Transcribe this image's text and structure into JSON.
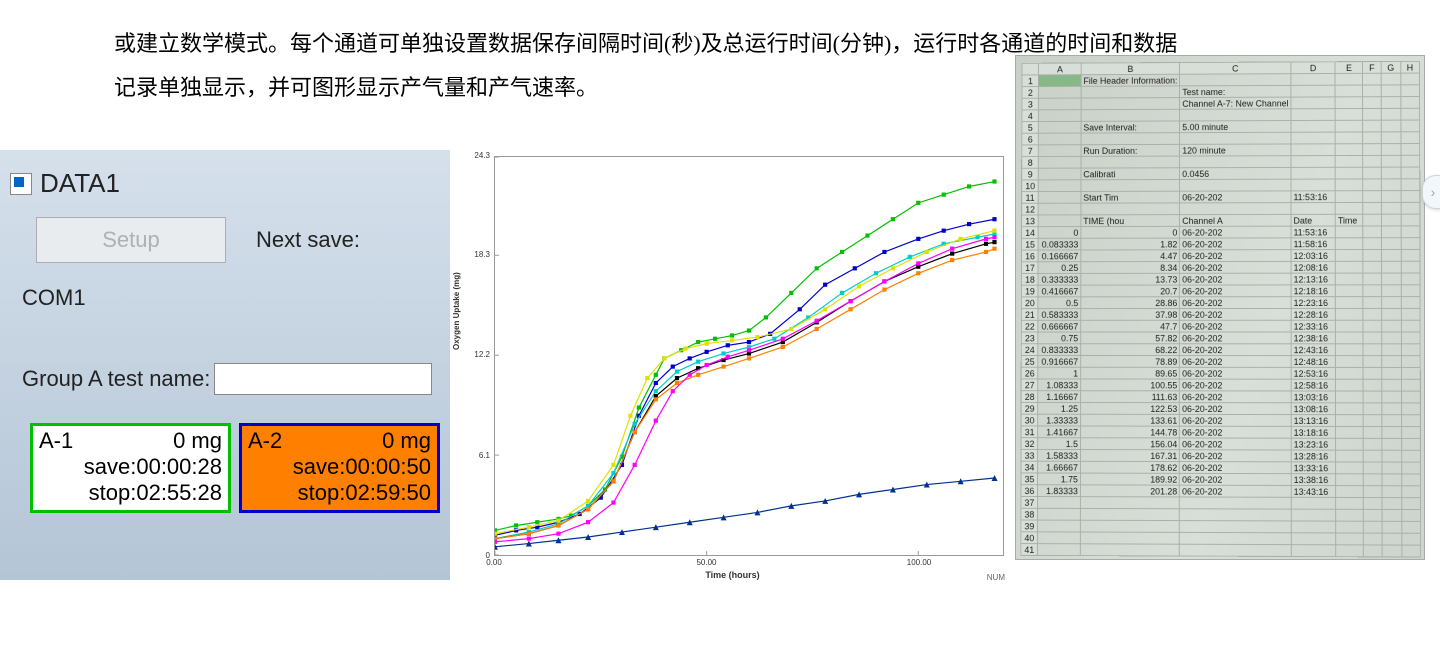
{
  "intro_text": "或建立数学模式。每个通道可单独设置数据保存间隔时间(秒)及总运行时间(分钟)，运行时各通道的时间和数据记录单独显示，并可图形显示产气量和产气速率。",
  "app": {
    "title": "DATA1",
    "setup_label": "Setup",
    "next_save_label": "Next save:",
    "com_label": "COM1",
    "group_label": "Group A test name:",
    "group_value": "",
    "channels": [
      {
        "id": "A-1",
        "value": "0 mg",
        "save": "save:00:00:28",
        "stop": "stop:02:55:28",
        "border_color": "#00c000",
        "bg_color": "#ffffff"
      },
      {
        "id": "A-2",
        "value": "0 mg",
        "save": "save:00:00:50",
        "stop": "stop:02:59:50",
        "border_color": "#0000cc",
        "bg_color": "#ff8000"
      }
    ]
  },
  "chart": {
    "type": "line",
    "x_label": "Time (hours)",
    "y_label": "Oxygen Uptake (mg)",
    "x_ticks": [
      0.0,
      50.0,
      100.0
    ],
    "y_ticks": [
      0,
      6.1,
      12.2,
      18.3,
      24.3
    ],
    "xlim": [
      0,
      120
    ],
    "ylim": [
      0,
      24.3
    ],
    "background_color": "#ffffff",
    "grid": false,
    "marker_size": 3,
    "line_width": 1.2,
    "series": [
      {
        "color": "#00c000",
        "marker": "square",
        "data": [
          [
            0,
            1.5
          ],
          [
            5,
            1.8
          ],
          [
            10,
            2.0
          ],
          [
            15,
            2.2
          ],
          [
            18,
            2.4
          ],
          [
            22,
            3.0
          ],
          [
            26,
            4.0
          ],
          [
            30,
            6.0
          ],
          [
            34,
            9.0
          ],
          [
            38,
            11.0
          ],
          [
            40,
            12.0
          ],
          [
            44,
            12.5
          ],
          [
            48,
            13.0
          ],
          [
            52,
            13.2
          ],
          [
            56,
            13.4
          ],
          [
            60,
            13.7
          ],
          [
            64,
            14.5
          ],
          [
            70,
            16.0
          ],
          [
            76,
            17.5
          ],
          [
            82,
            18.5
          ],
          [
            88,
            19.5
          ],
          [
            94,
            20.5
          ],
          [
            100,
            21.5
          ],
          [
            106,
            22.0
          ],
          [
            112,
            22.5
          ],
          [
            118,
            22.8
          ]
        ]
      },
      {
        "color": "#0000cc",
        "marker": "square",
        "data": [
          [
            0,
            1.2
          ],
          [
            5,
            1.5
          ],
          [
            10,
            1.7
          ],
          [
            15,
            2.0
          ],
          [
            20,
            2.5
          ],
          [
            25,
            3.5
          ],
          [
            30,
            5.5
          ],
          [
            34,
            8.5
          ],
          [
            38,
            10.5
          ],
          [
            42,
            11.5
          ],
          [
            46,
            12.0
          ],
          [
            50,
            12.4
          ],
          [
            55,
            12.8
          ],
          [
            60,
            13.0
          ],
          [
            65,
            13.5
          ],
          [
            72,
            15.0
          ],
          [
            78,
            16.5
          ],
          [
            85,
            17.5
          ],
          [
            92,
            18.5
          ],
          [
            100,
            19.3
          ],
          [
            106,
            19.8
          ],
          [
            112,
            20.2
          ],
          [
            118,
            20.5
          ]
        ]
      },
      {
        "color": "#00cccc",
        "marker": "square",
        "data": [
          [
            0,
            1.0
          ],
          [
            8,
            1.4
          ],
          [
            15,
            1.9
          ],
          [
            22,
            3.0
          ],
          [
            28,
            5.0
          ],
          [
            33,
            8.0
          ],
          [
            38,
            10.0
          ],
          [
            43,
            11.2
          ],
          [
            48,
            11.8
          ],
          [
            54,
            12.3
          ],
          [
            60,
            12.7
          ],
          [
            66,
            13.2
          ],
          [
            74,
            14.5
          ],
          [
            82,
            16.0
          ],
          [
            90,
            17.2
          ],
          [
            98,
            18.2
          ],
          [
            106,
            19.0
          ],
          [
            114,
            19.4
          ],
          [
            118,
            19.6
          ]
        ]
      },
      {
        "color": "#000000",
        "marker": "square",
        "data": [
          [
            0,
            1.0
          ],
          [
            8,
            1.3
          ],
          [
            15,
            1.8
          ],
          [
            22,
            2.8
          ],
          [
            28,
            4.5
          ],
          [
            33,
            7.5
          ],
          [
            38,
            9.7
          ],
          [
            43,
            10.8
          ],
          [
            48,
            11.4
          ],
          [
            54,
            11.9
          ],
          [
            60,
            12.3
          ],
          [
            68,
            13.0
          ],
          [
            76,
            14.2
          ],
          [
            84,
            15.5
          ],
          [
            92,
            16.7
          ],
          [
            100,
            17.6
          ],
          [
            108,
            18.4
          ],
          [
            116,
            19
          ],
          [
            118,
            19.1
          ]
        ]
      },
      {
        "color": "#e0e000",
        "marker": "square",
        "data": [
          [
            0,
            1.3
          ],
          [
            8,
            1.7
          ],
          [
            15,
            2.1
          ],
          [
            22,
            3.3
          ],
          [
            28,
            5.5
          ],
          [
            32,
            8.5
          ],
          [
            36,
            10.8
          ],
          [
            40,
            12.0
          ],
          [
            45,
            12.6
          ],
          [
            50,
            12.9
          ],
          [
            56,
            13.1
          ],
          [
            62,
            13.3
          ],
          [
            70,
            13.8
          ],
          [
            78,
            15.0
          ],
          [
            86,
            16.4
          ],
          [
            94,
            17.5
          ],
          [
            102,
            18.5
          ],
          [
            110,
            19.3
          ],
          [
            118,
            19.8
          ]
        ]
      },
      {
        "color": "#ff8000",
        "marker": "square",
        "data": [
          [
            0,
            1.0
          ],
          [
            8,
            1.3
          ],
          [
            15,
            1.8
          ],
          [
            22,
            2.8
          ],
          [
            28,
            4.5
          ],
          [
            33,
            7.5
          ],
          [
            38,
            9.5
          ],
          [
            43,
            10.5
          ],
          [
            48,
            11.0
          ],
          [
            54,
            11.5
          ],
          [
            60,
            12.0
          ],
          [
            68,
            12.7
          ],
          [
            76,
            13.8
          ],
          [
            84,
            15.0
          ],
          [
            92,
            16.2
          ],
          [
            100,
            17.2
          ],
          [
            108,
            18.0
          ],
          [
            116,
            18.5
          ],
          [
            118,
            18.7
          ]
        ]
      },
      {
        "color": "#ff00ff",
        "marker": "square",
        "data": [
          [
            0,
            0.8
          ],
          [
            8,
            1.0
          ],
          [
            15,
            1.3
          ],
          [
            22,
            2.0
          ],
          [
            28,
            3.2
          ],
          [
            33,
            5.5
          ],
          [
            38,
            8.2
          ],
          [
            42,
            10.0
          ],
          [
            46,
            11.0
          ],
          [
            50,
            11.6
          ],
          [
            55,
            12.1
          ],
          [
            60,
            12.5
          ],
          [
            68,
            13.2
          ],
          [
            76,
            14.3
          ],
          [
            84,
            15.5
          ],
          [
            92,
            16.7
          ],
          [
            100,
            17.8
          ],
          [
            108,
            18.7
          ],
          [
            116,
            19.3
          ],
          [
            118,
            19.4
          ]
        ]
      },
      {
        "color": "#003090",
        "marker": "triangle",
        "data": [
          [
            0,
            0.5
          ],
          [
            8,
            0.7
          ],
          [
            15,
            0.9
          ],
          [
            22,
            1.1
          ],
          [
            30,
            1.4
          ],
          [
            38,
            1.7
          ],
          [
            46,
            2.0
          ],
          [
            54,
            2.3
          ],
          [
            62,
            2.6
          ],
          [
            70,
            3.0
          ],
          [
            78,
            3.3
          ],
          [
            86,
            3.7
          ],
          [
            94,
            4.0
          ],
          [
            102,
            4.3
          ],
          [
            110,
            4.5
          ],
          [
            118,
            4.7
          ]
        ]
      }
    ],
    "footer": "NUM"
  },
  "sheet": {
    "columns": [
      "A",
      "B",
      "C",
      "D",
      "E",
      "F",
      "G",
      "H"
    ],
    "selected_cell": "A1",
    "header_rows": [
      {
        "row": 1,
        "B": "File Header Information:"
      },
      {
        "row": 2,
        "B": "",
        "C": "Test name:"
      },
      {
        "row": 3,
        "B": "",
        "C": "Channel A-7: New Channel"
      },
      {
        "row": 4,
        "B": ""
      },
      {
        "row": 5,
        "B": "Save Interval:",
        "C": " 5.00 minute"
      },
      {
        "row": 6,
        "B": ""
      },
      {
        "row": 7,
        "B": "Run Duration:",
        "C": " 120 minute"
      },
      {
        "row": 8,
        "B": ""
      },
      {
        "row": 9,
        "B": "Calibrati",
        "C": "0.0456"
      },
      {
        "row": 10,
        "B": ""
      },
      {
        "row": 11,
        "B": "Start Tim",
        "C": "06-20-202",
        "D": "11:53:16"
      },
      {
        "row": 12,
        "B": ""
      },
      {
        "row": 13,
        "B": "TIME (hou",
        "C": "Channel A",
        "D": "Date",
        "E_fake": "Time"
      }
    ],
    "data_rows": [
      {
        "row": 14,
        "A": "0",
        "B": "0",
        "C": "06-20-202",
        "D": "11:53:16"
      },
      {
        "row": 15,
        "A": "0.083333",
        "B": "1.82",
        "C": "06-20-202",
        "D": "11:58:16"
      },
      {
        "row": 16,
        "A": "0.166667",
        "B": "4.47",
        "C": "06-20-202",
        "D": "12:03:16"
      },
      {
        "row": 17,
        "A": "0.25",
        "B": "8.34",
        "C": "06-20-202",
        "D": "12:08:16"
      },
      {
        "row": 18,
        "A": "0.333333",
        "B": "13.73",
        "C": "06-20-202",
        "D": "12:13:16"
      },
      {
        "row": 19,
        "A": "0.416667",
        "B": "20.7",
        "C": "06-20-202",
        "D": "12:18:16"
      },
      {
        "row": 20,
        "A": "0.5",
        "B": "28.86",
        "C": "06-20-202",
        "D": "12:23:16"
      },
      {
        "row": 21,
        "A": "0.583333",
        "B": "37.98",
        "C": "06-20-202",
        "D": "12:28:16"
      },
      {
        "row": 22,
        "A": "0.666667",
        "B": "47.7",
        "C": "06-20-202",
        "D": "12:33:16"
      },
      {
        "row": 23,
        "A": "0.75",
        "B": "57.82",
        "C": "06-20-202",
        "D": "12:38:16"
      },
      {
        "row": 24,
        "A": "0.833333",
        "B": "68.22",
        "C": "06-20-202",
        "D": "12:43:16"
      },
      {
        "row": 25,
        "A": "0.916667",
        "B": "78.89",
        "C": "06-20-202",
        "D": "12:48:16"
      },
      {
        "row": 26,
        "A": "1",
        "B": "89.65",
        "C": "06-20-202",
        "D": "12:53:16"
      },
      {
        "row": 27,
        "A": "1.08333",
        "B": "100.55",
        "C": "06-20-202",
        "D": "12:58:16"
      },
      {
        "row": 28,
        "A": "1.16667",
        "B": "111.63",
        "C": "06-20-202",
        "D": "13:03:16"
      },
      {
        "row": 29,
        "A": "1.25",
        "B": "122.53",
        "C": "06-20-202",
        "D": "13:08:16"
      },
      {
        "row": 30,
        "A": "1.33333",
        "B": "133.61",
        "C": "06-20-202",
        "D": "13:13:16"
      },
      {
        "row": 31,
        "A": "1.41667",
        "B": "144.78",
        "C": "06-20-202",
        "D": "13:18:16"
      },
      {
        "row": 32,
        "A": "1.5",
        "B": "156.04",
        "C": "06-20-202",
        "D": "13:23:16"
      },
      {
        "row": 33,
        "A": "1.58333",
        "B": "167.31",
        "C": "06-20-202",
        "D": "13:28:16"
      },
      {
        "row": 34,
        "A": "1.66667",
        "B": "178.62",
        "C": "06-20-202",
        "D": "13:33:16"
      },
      {
        "row": 35,
        "A": "1.75",
        "B": "189.92",
        "C": "06-20-202",
        "D": "13:38:16"
      },
      {
        "row": 36,
        "A": "1.83333",
        "B": "201.28",
        "C": "06-20-202",
        "D": "13:43:16"
      }
    ],
    "blank_rows": [
      37,
      38,
      39,
      40,
      41
    ]
  },
  "side_tab_glyph": "›"
}
